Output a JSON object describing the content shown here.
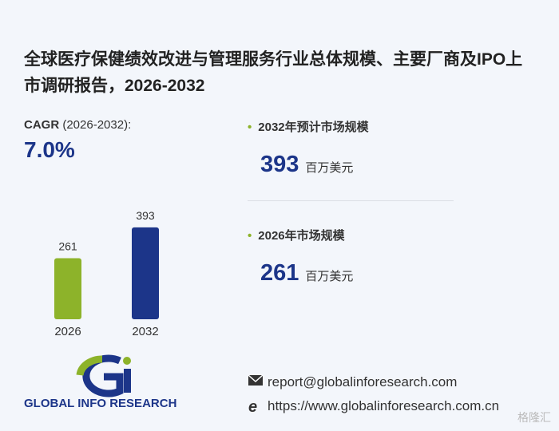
{
  "chart_data": {
    "type": "bar",
    "title": "全球医疗保健绩效改进与管理服务行业总体规模、主要厂商及IPO上市调研报告，2026-2032",
    "cagr_label": "CAGR",
    "cagr_period": "(2026-2032):",
    "cagr_value": "7.0%",
    "categories": [
      "2026",
      "2032"
    ],
    "values": [
      261,
      393
    ],
    "colors": [
      "#8db32a",
      "#1c3589"
    ],
    "highlights": [
      {
        "label": "2032年预计市场规模",
        "value": 393,
        "unit": "百万美元"
      },
      {
        "label": "2026年市场规模",
        "value": 261,
        "unit": "百万美元"
      }
    ],
    "brand": "GLOBAL INFO RESEARCH",
    "email": "report@globalinforesearch.com",
    "website": "https://www.globalinforesearch.com.cn",
    "watermark": "格隆汇"
  }
}
